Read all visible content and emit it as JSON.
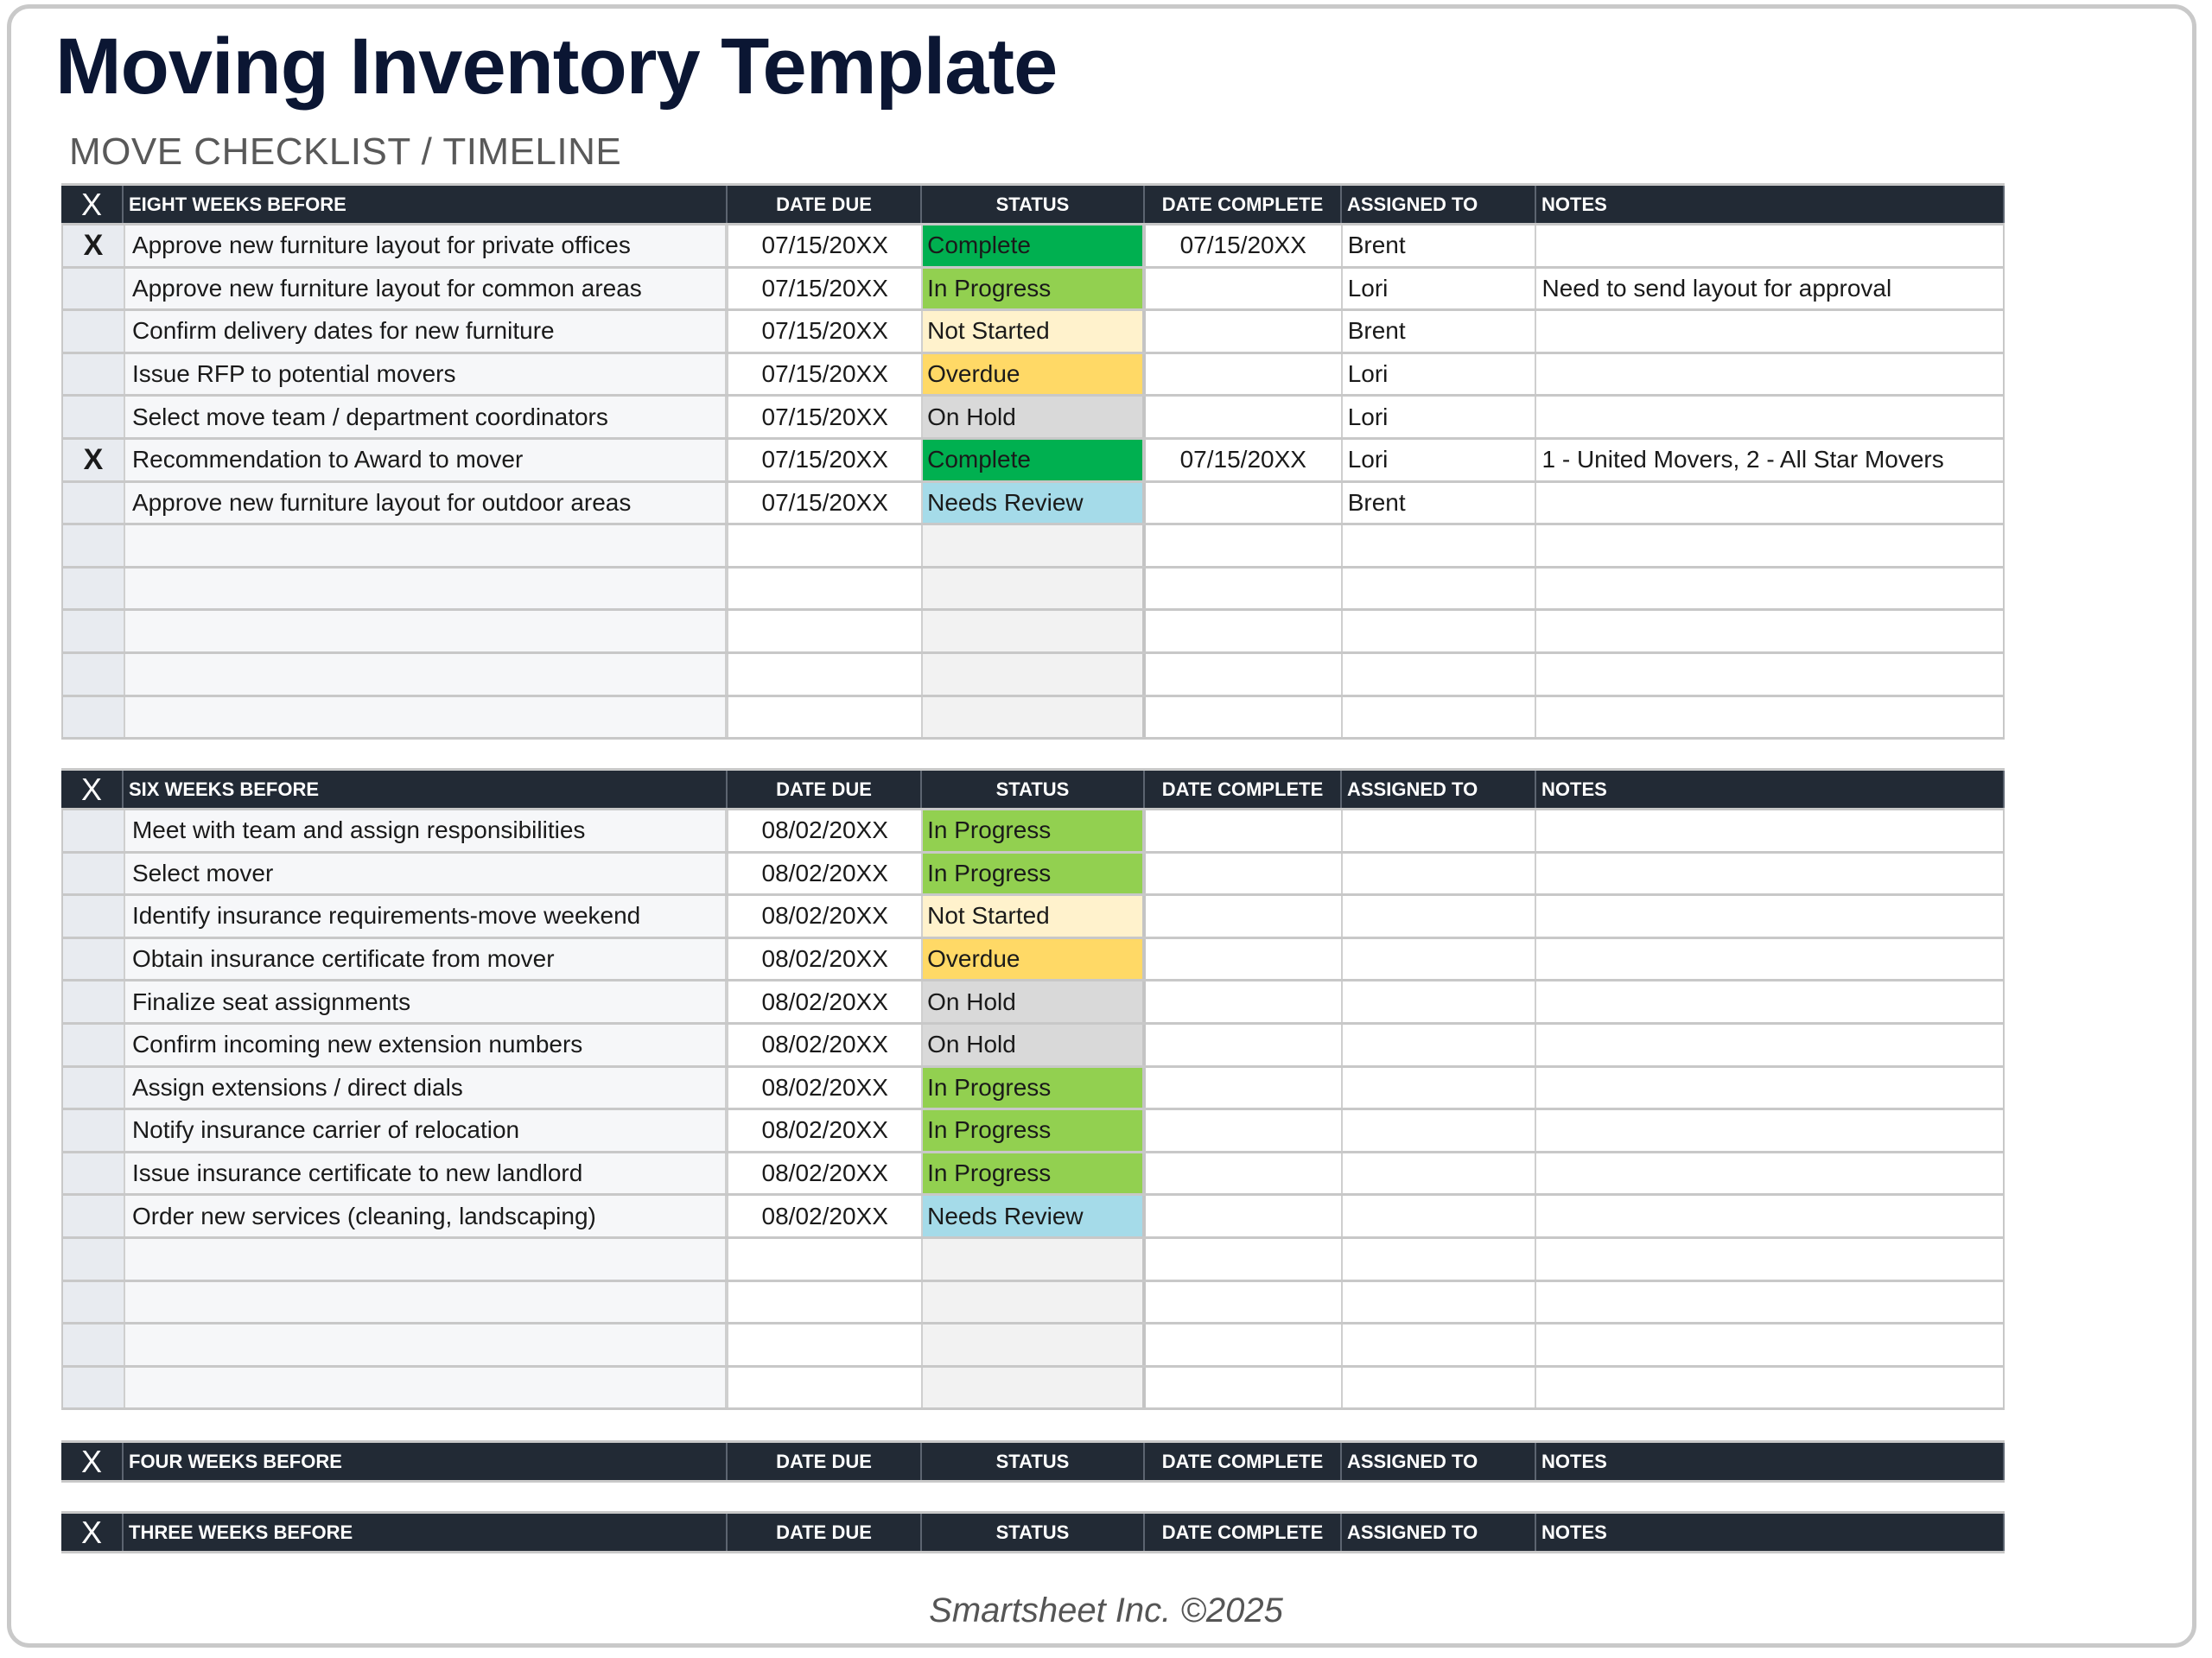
{
  "title": "Moving Inventory Template",
  "subtitle": "MOVE CHECKLIST / TIMELINE",
  "columns": {
    "x": "X",
    "date_due": "DATE DUE",
    "status": "STATUS",
    "date_complete": "DATE COMPLETE",
    "assigned_to": "ASSIGNED TO",
    "notes": "NOTES"
  },
  "status_colors": {
    "Complete": "#00b050",
    "In Progress": "#92d050",
    "Not Started": "#fff2cc",
    "Overdue": "#ffd966",
    "On Hold": "#d9d9d9",
    "Needs Review": "#a5dbe9"
  },
  "sections": [
    {
      "heading": "EIGHT WEEKS BEFORE",
      "rows": [
        {
          "x": "X",
          "task": "Approve new furniture layout for private offices",
          "date_due": "07/15/20XX",
          "status": "Complete",
          "date_complete": "07/15/20XX",
          "assigned_to": "Brent",
          "notes": ""
        },
        {
          "x": "",
          "task": "Approve new furniture layout for common areas",
          "date_due": "07/15/20XX",
          "status": "In Progress",
          "date_complete": "",
          "assigned_to": "Lori",
          "notes": "Need to send layout for approval"
        },
        {
          "x": "",
          "task": "Confirm delivery dates for new furniture",
          "date_due": "07/15/20XX",
          "status": "Not Started",
          "date_complete": "",
          "assigned_to": "Brent",
          "notes": ""
        },
        {
          "x": "",
          "task": "Issue RFP to potential movers",
          "date_due": "07/15/20XX",
          "status": "Overdue",
          "date_complete": "",
          "assigned_to": "Lori",
          "notes": ""
        },
        {
          "x": "",
          "task": "Select move team / department coordinators",
          "date_due": "07/15/20XX",
          "status": "On Hold",
          "date_complete": "",
          "assigned_to": "Lori",
          "notes": ""
        },
        {
          "x": "X",
          "task": "Recommendation to Award to mover",
          "date_due": "07/15/20XX",
          "status": "Complete",
          "date_complete": "07/15/20XX",
          "assigned_to": "Lori",
          "notes": "1 - United Movers, 2 - All Star Movers"
        },
        {
          "x": "",
          "task": "Approve new furniture layout for outdoor areas",
          "date_due": "07/15/20XX",
          "status": "Needs Review",
          "date_complete": "",
          "assigned_to": "Brent",
          "notes": ""
        },
        {
          "x": "",
          "task": "",
          "date_due": "",
          "status": "",
          "date_complete": "",
          "assigned_to": "",
          "notes": ""
        },
        {
          "x": "",
          "task": "",
          "date_due": "",
          "status": "",
          "date_complete": "",
          "assigned_to": "",
          "notes": ""
        },
        {
          "x": "",
          "task": "",
          "date_due": "",
          "status": "",
          "date_complete": "",
          "assigned_to": "",
          "notes": ""
        },
        {
          "x": "",
          "task": "",
          "date_due": "",
          "status": "",
          "date_complete": "",
          "assigned_to": "",
          "notes": ""
        },
        {
          "x": "",
          "task": "",
          "date_due": "",
          "status": "",
          "date_complete": "",
          "assigned_to": "",
          "notes": ""
        }
      ]
    },
    {
      "heading": "SIX WEEKS BEFORE",
      "rows": [
        {
          "x": "",
          "task": "Meet with team and assign responsibilities",
          "date_due": "08/02/20XX",
          "status": "In Progress",
          "date_complete": "",
          "assigned_to": "",
          "notes": ""
        },
        {
          "x": "",
          "task": "Select mover",
          "date_due": "08/02/20XX",
          "status": "In Progress",
          "date_complete": "",
          "assigned_to": "",
          "notes": ""
        },
        {
          "x": "",
          "task": "Identify insurance requirements-move weekend",
          "date_due": "08/02/20XX",
          "status": "Not Started",
          "date_complete": "",
          "assigned_to": "",
          "notes": ""
        },
        {
          "x": "",
          "task": "Obtain insurance certificate from mover",
          "date_due": "08/02/20XX",
          "status": "Overdue",
          "date_complete": "",
          "assigned_to": "",
          "notes": ""
        },
        {
          "x": "",
          "task": "Finalize seat assignments",
          "date_due": "08/02/20XX",
          "status": "On Hold",
          "date_complete": "",
          "assigned_to": "",
          "notes": ""
        },
        {
          "x": "",
          "task": "Confirm incoming new extension numbers",
          "date_due": "08/02/20XX",
          "status": "On Hold",
          "date_complete": "",
          "assigned_to": "",
          "notes": ""
        },
        {
          "x": "",
          "task": "Assign extensions / direct dials",
          "date_due": "08/02/20XX",
          "status": "In Progress",
          "date_complete": "",
          "assigned_to": "",
          "notes": ""
        },
        {
          "x": "",
          "task": "Notify insurance carrier of relocation",
          "date_due": "08/02/20XX",
          "status": "In Progress",
          "date_complete": "",
          "assigned_to": "",
          "notes": ""
        },
        {
          "x": "",
          "task": "Issue insurance certificate to new landlord",
          "date_due": "08/02/20XX",
          "status": "In Progress",
          "date_complete": "",
          "assigned_to": "",
          "notes": ""
        },
        {
          "x": "",
          "task": "Order new services (cleaning, landscaping)",
          "date_due": "08/02/20XX",
          "status": "Needs Review",
          "date_complete": "",
          "assigned_to": "",
          "notes": ""
        },
        {
          "x": "",
          "task": "",
          "date_due": "",
          "status": "",
          "date_complete": "",
          "assigned_to": "",
          "notes": ""
        },
        {
          "x": "",
          "task": "",
          "date_due": "",
          "status": "",
          "date_complete": "",
          "assigned_to": "",
          "notes": ""
        },
        {
          "x": "",
          "task": "",
          "date_due": "",
          "status": "",
          "date_complete": "",
          "assigned_to": "",
          "notes": ""
        },
        {
          "x": "",
          "task": "",
          "date_due": "",
          "status": "",
          "date_complete": "",
          "assigned_to": "",
          "notes": ""
        }
      ]
    },
    {
      "heading": "FOUR WEEKS BEFORE",
      "rows": []
    },
    {
      "heading": "THREE WEEKS BEFORE",
      "rows": []
    }
  ],
  "footer": "Smartsheet Inc. ©2025"
}
